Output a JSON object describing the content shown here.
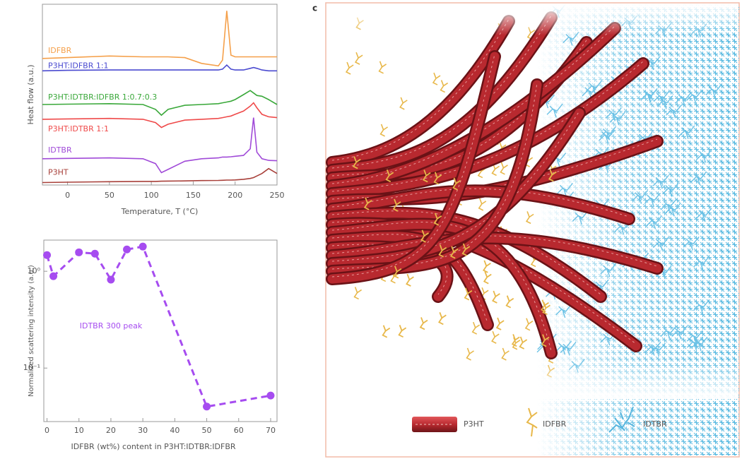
{
  "chart_data": [
    {
      "type": "line",
      "xlabel": "Temperature, T (°C)",
      "ylabel": "Heat flow (a.u.)",
      "x": [
        -30,
        0,
        50,
        90,
        105,
        112,
        120,
        140,
        160,
        180,
        185,
        190,
        195,
        200,
        210,
        218,
        222,
        226,
        232,
        240,
        250
      ],
      "xlim": [
        -30,
        250
      ],
      "xticks": [
        0,
        50,
        100,
        150,
        200,
        250
      ],
      "ylim": [
        0,
        11
      ],
      "series": [
        {
          "name": "IDFBR",
          "color": "#f5a04a",
          "values": [
            7.7,
            7.75,
            7.85,
            7.8,
            7.8,
            7.8,
            7.8,
            7.75,
            7.4,
            7.25,
            7.6,
            10.6,
            7.9,
            7.8,
            7.8,
            7.8,
            7.8,
            7.8,
            7.8,
            7.8,
            7.8
          ]
        },
        {
          "name": "P3HT:IDFBR 1:1",
          "color": "#4a4ad0",
          "values": [
            6.95,
            6.98,
            7.0,
            7.0,
            7.0,
            7.0,
            7.0,
            7.0,
            7.0,
            7.0,
            7.05,
            7.3,
            7.05,
            7.0,
            7.0,
            7.1,
            7.15,
            7.1,
            7.0,
            6.95,
            6.95
          ]
        },
        {
          "name": "P3HT:IDTBR:IDFBR 1:0.7:0.3",
          "color": "#3aa83a",
          "values": [
            4.9,
            4.92,
            4.95,
            4.9,
            4.6,
            4.25,
            4.6,
            4.85,
            4.9,
            4.95,
            5.0,
            5.05,
            5.1,
            5.2,
            5.5,
            5.75,
            5.6,
            5.45,
            5.4,
            5.2,
            4.9
          ]
        },
        {
          "name": "P3HT:IDTBR 1:1",
          "color": "#ef4a4a",
          "values": [
            4.0,
            4.02,
            4.05,
            4.0,
            3.8,
            3.5,
            3.7,
            3.95,
            4.0,
            4.05,
            4.1,
            4.15,
            4.2,
            4.3,
            4.5,
            4.8,
            5.0,
            4.7,
            4.3,
            4.15,
            4.1
          ]
        },
        {
          "name": "IDTBR",
          "color": "#a04ad8",
          "values": [
            1.6,
            1.62,
            1.65,
            1.6,
            1.3,
            0.75,
            0.95,
            1.45,
            1.6,
            1.65,
            1.7,
            1.7,
            1.72,
            1.75,
            1.8,
            2.2,
            4.1,
            2.0,
            1.6,
            1.5,
            1.48
          ]
        },
        {
          "name": "P3HT",
          "color": "#a8403a",
          "values": [
            0.15,
            0.17,
            0.2,
            0.22,
            0.22,
            0.23,
            0.24,
            0.25,
            0.27,
            0.28,
            0.29,
            0.3,
            0.3,
            0.31,
            0.35,
            0.4,
            0.45,
            0.55,
            0.7,
            1.0,
            0.7
          ]
        }
      ]
    },
    {
      "type": "scatter",
      "xlabel": "IDFBR (wt%) content in P3HT:IDTBR:IDFBR",
      "ylabel": "Normalized scattering intensity (a.u.)",
      "annotation": "IDTBR 300 peak",
      "x": [
        0,
        2,
        10,
        15,
        20,
        25,
        30,
        50,
        70
      ],
      "xlim": [
        -1,
        72
      ],
      "xticks": [
        0,
        10,
        20,
        30,
        40,
        50,
        60,
        70
      ],
      "ylim": [
        0.028,
        2.1
      ],
      "log_y": true,
      "yticks": [
        {
          "value": 1,
          "label": "10⁰"
        },
        {
          "value": 0.1,
          "label": "10⁻¹"
        }
      ],
      "series": [
        {
          "color": "#a64cf0",
          "values": [
            1.47,
            0.89,
            1.57,
            1.52,
            0.82,
            1.68,
            1.8,
            0.04,
            0.052
          ]
        }
      ]
    }
  ],
  "illustration": {
    "panel_label": "c",
    "legend": [
      "P3HT",
      "IDFBR",
      "IDTBR"
    ]
  }
}
